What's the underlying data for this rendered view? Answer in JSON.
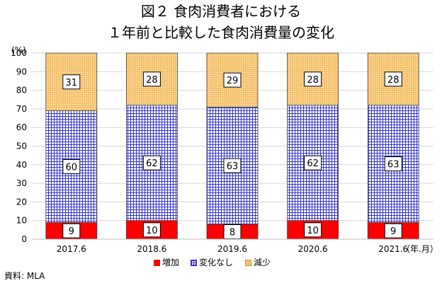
{
  "title_line1": "図２ 食肉消費者における",
  "title_line2": "１年前と比較した食肉消費量の変化",
  "source": "資料: MLA",
  "chart_data": {
    "type": "bar",
    "stacked": true,
    "ylabel": "(%)",
    "xlabel": "（年.月）",
    "ylim": [
      0,
      100
    ],
    "yticks": [
      0,
      10,
      20,
      30,
      40,
      50,
      60,
      70,
      80,
      90,
      100
    ],
    "grid": true,
    "legend_position": "bottom",
    "categories": [
      "2017.6",
      "2018.6",
      "2019.6",
      "2020.6",
      "2021.6"
    ],
    "series": [
      {
        "name": "増加",
        "values": [
          9,
          10,
          8,
          10,
          9
        ],
        "color": "#ff0000",
        "pattern": "solid"
      },
      {
        "name": "変化なし",
        "values": [
          60,
          62,
          63,
          62,
          63
        ],
        "color": "#3333cc",
        "pattern": "grid"
      },
      {
        "name": "減少",
        "values": [
          31,
          28,
          29,
          28,
          28
        ],
        "color": "#f5c26b",
        "pattern": "dots"
      }
    ]
  }
}
